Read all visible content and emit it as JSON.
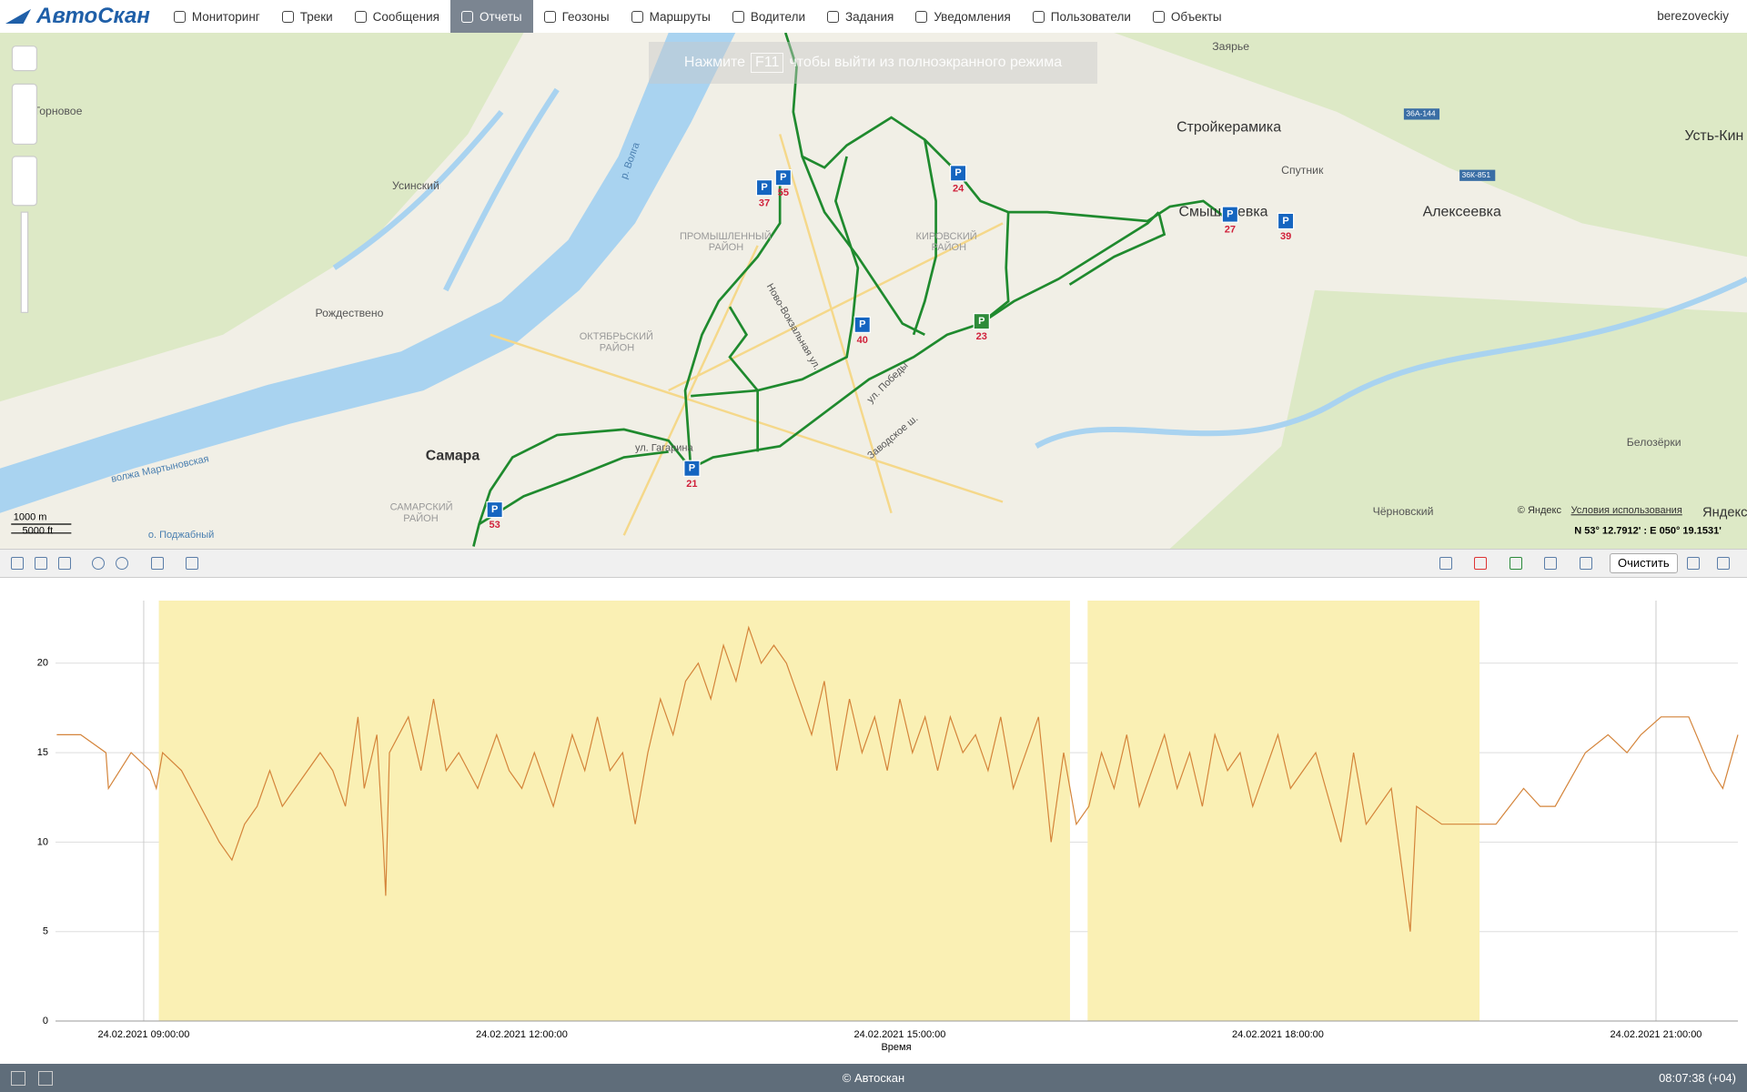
{
  "header": {
    "logo": "АвтоСкан",
    "menu": [
      "Мониторинг",
      "Треки",
      "Сообщения",
      "Отчеты",
      "Геозоны",
      "Маршруты",
      "Водители",
      "Задания",
      "Уведомления",
      "Пользователи",
      "Объекты"
    ],
    "active": 3,
    "user": "berezoveckiy"
  },
  "map": {
    "banner": "Нажмите",
    "banner_key": "F11",
    "banner_rest": "чтобы выйти из полноэкранного режима",
    "labels": [
      "Торновое",
      "Усинский",
      "Рождествено",
      "Самара",
      "Стройкерамика",
      "Алексеевка",
      "Спутник",
      "Заярье",
      "Усть-Кин",
      "Смышляевка",
      "Белозёрки",
      "Чёрновский",
      "ПРОМЫШЛЕННЫЙ",
      "РАЙОН",
      "КИРОВСКИЙ",
      "РАЙОН",
      "ОКТЯБРЬСКИЙ",
      "РАЙОН",
      "САМАРСКИЙ",
      "РАЙОН",
      "ул. Гагарина",
      "Заводское ш.",
      "р. Волга",
      "волжа Мартыновская",
      "ул. Победы",
      "Ново-Вокзальная ул.",
      "о. Поджабный",
      "36А-144",
      "36К-851"
    ],
    "parking_symbol": "P",
    "markers": [
      "37",
      "55",
      "24",
      "27",
      "39",
      "40",
      "23",
      "53",
      "21"
    ],
    "scale_m": "1000 m",
    "scale_ft": "5000 ft",
    "copyright": "© Яндекс",
    "terms": "Условия использования",
    "brand": "Яндекс",
    "coords": "N 53° 12.7912' : E 050° 19.1531'"
  },
  "toolbar": {
    "clear": "Очистить"
  },
  "chart_data": {
    "type": "line",
    "x_label": "Время",
    "color": "#d4843a",
    "highlight_color": "#faf0b4",
    "grid": true,
    "x": [
      8.31,
      8.5,
      8.7,
      8.72,
      8.9,
      9.05,
      9.1,
      9.15,
      9.3,
      9.45,
      9.6,
      9.7,
      9.8,
      9.9,
      10.0,
      10.1,
      10.2,
      10.4,
      10.5,
      10.6,
      10.7,
      10.75,
      10.85,
      10.9,
      10.92,
      10.95,
      11.1,
      11.2,
      11.3,
      11.4,
      11.5,
      11.65,
      11.8,
      11.9,
      12.0,
      12.1,
      12.25,
      12.4,
      12.5,
      12.6,
      12.7,
      12.8,
      12.9,
      13.0,
      13.1,
      13.2,
      13.3,
      13.4,
      13.5,
      13.6,
      13.7,
      13.8,
      13.9,
      14.0,
      14.1,
      14.2,
      14.3,
      14.4,
      14.5,
      14.6,
      14.7,
      14.8,
      14.9,
      15.0,
      15.1,
      15.2,
      15.3,
      15.4,
      15.5,
      15.6,
      15.7,
      15.8,
      15.9,
      16.0,
      16.1,
      16.2,
      16.3,
      16.4,
      16.5,
      16.6,
      16.7,
      16.8,
      16.9,
      17.0,
      17.1,
      17.2,
      17.3,
      17.4,
      17.5,
      17.6,
      17.7,
      17.8,
      17.9,
      18.0,
      18.1,
      18.3,
      18.5,
      18.6,
      18.7,
      18.9,
      19.05,
      19.1,
      19.3,
      19.6,
      19.73,
      19.95,
      20.08,
      20.2,
      20.44,
      20.62,
      20.77,
      20.88,
      21.04,
      21.26,
      21.44,
      21.53,
      21.65
    ],
    "values": [
      16,
      16,
      15,
      13,
      15,
      14,
      13,
      15,
      14,
      12,
      10,
      9,
      11,
      12,
      14,
      12,
      13,
      15,
      14,
      12,
      17,
      13,
      16,
      10,
      7,
      15,
      17,
      14,
      18,
      14,
      15,
      13,
      16,
      14,
      13,
      15,
      12,
      16,
      14,
      17,
      14,
      15,
      11,
      15,
      18,
      16,
      19,
      20,
      18,
      21,
      19,
      22,
      20,
      21,
      20,
      18,
      16,
      19,
      14,
      18,
      15,
      17,
      14,
      18,
      15,
      17,
      14,
      17,
      15,
      16,
      14,
      17,
      13,
      15,
      17,
      10,
      15,
      11,
      12,
      15,
      13,
      16,
      12,
      14,
      16,
      13,
      15,
      12,
      16,
      14,
      15,
      12,
      14,
      16,
      13,
      15,
      10,
      15,
      11,
      13,
      5,
      12,
      11,
      11,
      11,
      13,
      12,
      12,
      15,
      16,
      15,
      16,
      17,
      17,
      14,
      13,
      16
    ],
    "highlights": [
      [
        9.12,
        16.35
      ],
      [
        16.49,
        19.6
      ]
    ],
    "xlim": [
      8.3,
      21.65
    ],
    "ylim": [
      0,
      23.5
    ],
    "xticks": [
      {
        "value": 9,
        "label": "24.02.2021 09:00:00"
      },
      {
        "value": 12,
        "label": "24.02.2021 12:00:00"
      },
      {
        "value": 15,
        "label": "24.02.2021 15:00:00"
      },
      {
        "value": 18,
        "label": "24.02.2021 18:00:00"
      },
      {
        "value": 21,
        "label": "24.02.2021 21:00:00"
      }
    ],
    "yticks": [
      0,
      5,
      10,
      15,
      20
    ]
  },
  "footer": {
    "copyright": "© Автоскан",
    "time": "08:07:38 (+04)"
  }
}
